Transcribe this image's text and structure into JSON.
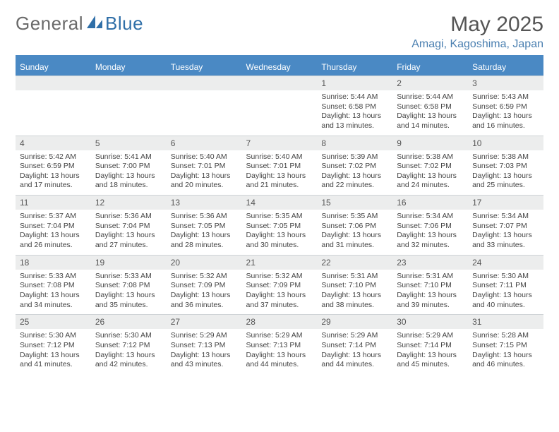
{
  "logo": {
    "part1": "General",
    "part2": "Blue"
  },
  "title": "May 2025",
  "location": "Amagi, Kagoshima, Japan",
  "colors": {
    "header_bg": "#4a89c4",
    "header_text": "#ffffff",
    "daynum_bg": "#eceded",
    "text": "#444444",
    "logo_gray": "#6a6a6a",
    "logo_blue": "#2f6fa8",
    "location_color": "#4a7fb0"
  },
  "day_headers": [
    "Sunday",
    "Monday",
    "Tuesday",
    "Wednesday",
    "Thursday",
    "Friday",
    "Saturday"
  ],
  "weeks": [
    {
      "nums": [
        "",
        "",
        "",
        "",
        "1",
        "2",
        "3"
      ],
      "cells": [
        null,
        null,
        null,
        null,
        {
          "sunrise": "Sunrise: 5:44 AM",
          "sunset": "Sunset: 6:58 PM",
          "d1": "Daylight: 13 hours",
          "d2": "and 13 minutes."
        },
        {
          "sunrise": "Sunrise: 5:44 AM",
          "sunset": "Sunset: 6:58 PM",
          "d1": "Daylight: 13 hours",
          "d2": "and 14 minutes."
        },
        {
          "sunrise": "Sunrise: 5:43 AM",
          "sunset": "Sunset: 6:59 PM",
          "d1": "Daylight: 13 hours",
          "d2": "and 16 minutes."
        }
      ]
    },
    {
      "nums": [
        "4",
        "5",
        "6",
        "7",
        "8",
        "9",
        "10"
      ],
      "cells": [
        {
          "sunrise": "Sunrise: 5:42 AM",
          "sunset": "Sunset: 6:59 PM",
          "d1": "Daylight: 13 hours",
          "d2": "and 17 minutes."
        },
        {
          "sunrise": "Sunrise: 5:41 AM",
          "sunset": "Sunset: 7:00 PM",
          "d1": "Daylight: 13 hours",
          "d2": "and 18 minutes."
        },
        {
          "sunrise": "Sunrise: 5:40 AM",
          "sunset": "Sunset: 7:01 PM",
          "d1": "Daylight: 13 hours",
          "d2": "and 20 minutes."
        },
        {
          "sunrise": "Sunrise: 5:40 AM",
          "sunset": "Sunset: 7:01 PM",
          "d1": "Daylight: 13 hours",
          "d2": "and 21 minutes."
        },
        {
          "sunrise": "Sunrise: 5:39 AM",
          "sunset": "Sunset: 7:02 PM",
          "d1": "Daylight: 13 hours",
          "d2": "and 22 minutes."
        },
        {
          "sunrise": "Sunrise: 5:38 AM",
          "sunset": "Sunset: 7:02 PM",
          "d1": "Daylight: 13 hours",
          "d2": "and 24 minutes."
        },
        {
          "sunrise": "Sunrise: 5:38 AM",
          "sunset": "Sunset: 7:03 PM",
          "d1": "Daylight: 13 hours",
          "d2": "and 25 minutes."
        }
      ]
    },
    {
      "nums": [
        "11",
        "12",
        "13",
        "14",
        "15",
        "16",
        "17"
      ],
      "cells": [
        {
          "sunrise": "Sunrise: 5:37 AM",
          "sunset": "Sunset: 7:04 PM",
          "d1": "Daylight: 13 hours",
          "d2": "and 26 minutes."
        },
        {
          "sunrise": "Sunrise: 5:36 AM",
          "sunset": "Sunset: 7:04 PM",
          "d1": "Daylight: 13 hours",
          "d2": "and 27 minutes."
        },
        {
          "sunrise": "Sunrise: 5:36 AM",
          "sunset": "Sunset: 7:05 PM",
          "d1": "Daylight: 13 hours",
          "d2": "and 28 minutes."
        },
        {
          "sunrise": "Sunrise: 5:35 AM",
          "sunset": "Sunset: 7:05 PM",
          "d1": "Daylight: 13 hours",
          "d2": "and 30 minutes."
        },
        {
          "sunrise": "Sunrise: 5:35 AM",
          "sunset": "Sunset: 7:06 PM",
          "d1": "Daylight: 13 hours",
          "d2": "and 31 minutes."
        },
        {
          "sunrise": "Sunrise: 5:34 AM",
          "sunset": "Sunset: 7:06 PM",
          "d1": "Daylight: 13 hours",
          "d2": "and 32 minutes."
        },
        {
          "sunrise": "Sunrise: 5:34 AM",
          "sunset": "Sunset: 7:07 PM",
          "d1": "Daylight: 13 hours",
          "d2": "and 33 minutes."
        }
      ]
    },
    {
      "nums": [
        "18",
        "19",
        "20",
        "21",
        "22",
        "23",
        "24"
      ],
      "cells": [
        {
          "sunrise": "Sunrise: 5:33 AM",
          "sunset": "Sunset: 7:08 PM",
          "d1": "Daylight: 13 hours",
          "d2": "and 34 minutes."
        },
        {
          "sunrise": "Sunrise: 5:33 AM",
          "sunset": "Sunset: 7:08 PM",
          "d1": "Daylight: 13 hours",
          "d2": "and 35 minutes."
        },
        {
          "sunrise": "Sunrise: 5:32 AM",
          "sunset": "Sunset: 7:09 PM",
          "d1": "Daylight: 13 hours",
          "d2": "and 36 minutes."
        },
        {
          "sunrise": "Sunrise: 5:32 AM",
          "sunset": "Sunset: 7:09 PM",
          "d1": "Daylight: 13 hours",
          "d2": "and 37 minutes."
        },
        {
          "sunrise": "Sunrise: 5:31 AM",
          "sunset": "Sunset: 7:10 PM",
          "d1": "Daylight: 13 hours",
          "d2": "and 38 minutes."
        },
        {
          "sunrise": "Sunrise: 5:31 AM",
          "sunset": "Sunset: 7:10 PM",
          "d1": "Daylight: 13 hours",
          "d2": "and 39 minutes."
        },
        {
          "sunrise": "Sunrise: 5:30 AM",
          "sunset": "Sunset: 7:11 PM",
          "d1": "Daylight: 13 hours",
          "d2": "and 40 minutes."
        }
      ]
    },
    {
      "nums": [
        "25",
        "26",
        "27",
        "28",
        "29",
        "30",
        "31"
      ],
      "cells": [
        {
          "sunrise": "Sunrise: 5:30 AM",
          "sunset": "Sunset: 7:12 PM",
          "d1": "Daylight: 13 hours",
          "d2": "and 41 minutes."
        },
        {
          "sunrise": "Sunrise: 5:30 AM",
          "sunset": "Sunset: 7:12 PM",
          "d1": "Daylight: 13 hours",
          "d2": "and 42 minutes."
        },
        {
          "sunrise": "Sunrise: 5:29 AM",
          "sunset": "Sunset: 7:13 PM",
          "d1": "Daylight: 13 hours",
          "d2": "and 43 minutes."
        },
        {
          "sunrise": "Sunrise: 5:29 AM",
          "sunset": "Sunset: 7:13 PM",
          "d1": "Daylight: 13 hours",
          "d2": "and 44 minutes."
        },
        {
          "sunrise": "Sunrise: 5:29 AM",
          "sunset": "Sunset: 7:14 PM",
          "d1": "Daylight: 13 hours",
          "d2": "and 44 minutes."
        },
        {
          "sunrise": "Sunrise: 5:29 AM",
          "sunset": "Sunset: 7:14 PM",
          "d1": "Daylight: 13 hours",
          "d2": "and 45 minutes."
        },
        {
          "sunrise": "Sunrise: 5:28 AM",
          "sunset": "Sunset: 7:15 PM",
          "d1": "Daylight: 13 hours",
          "d2": "and 46 minutes."
        }
      ]
    }
  ]
}
